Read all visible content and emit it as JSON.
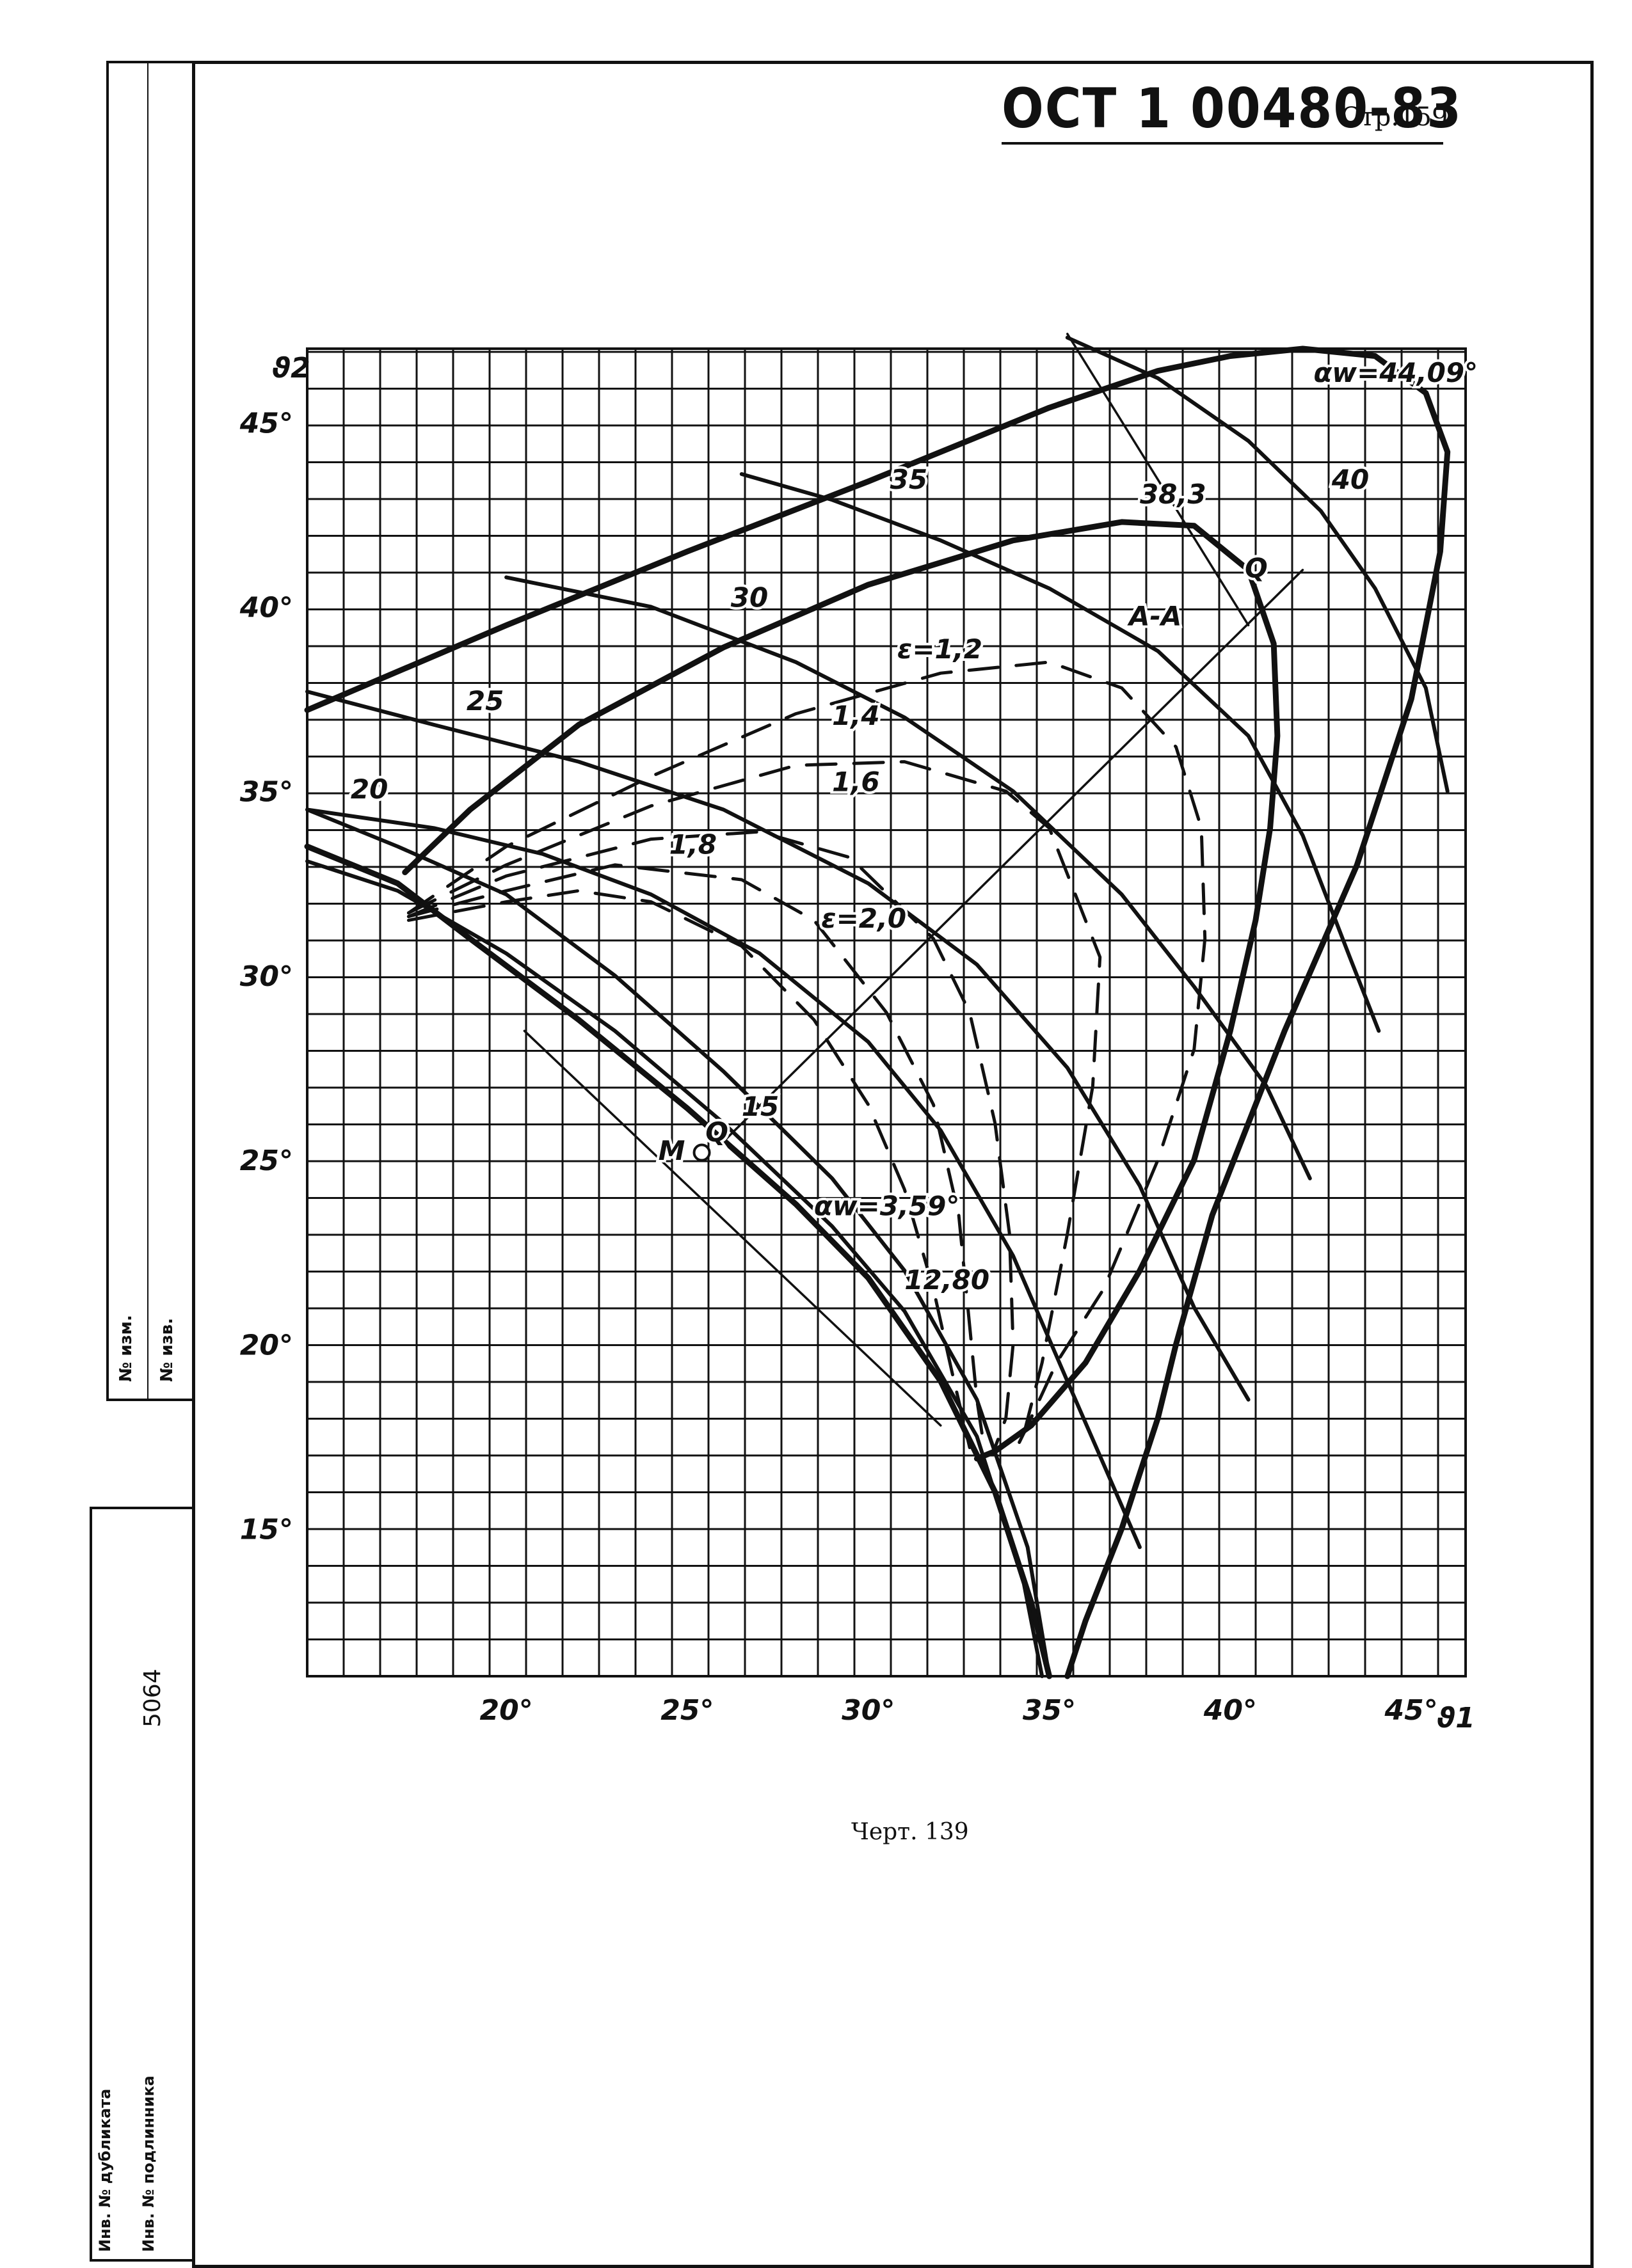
{
  "header": {
    "doc_code": "ОСТ 1 00480-83",
    "page": "Стр.159"
  },
  "caption": "Черт. 139",
  "margin": {
    "rev_label": "№ изм.",
    "notice_label": "№ изв.",
    "inv_number": "5064",
    "dup_label": "Инв. № дубликата",
    "orig_label": "Инв. № подлинника"
  },
  "chart_data": {
    "type": "line",
    "xlabel": "ϑ1",
    "ylabel": "ϑ2",
    "xlim": [
      14.5,
      46.5
    ],
    "ylim": [
      11,
      47
    ],
    "grid": true,
    "x_ticks": [
      "20°",
      "25°",
      "30°",
      "35°",
      "40°",
      "45°"
    ],
    "y_ticks": [
      "15°",
      "20°",
      "25°",
      "30°",
      "35°",
      "40°",
      "45°"
    ],
    "series": [
      {
        "name": "αw=44,09°",
        "style": "thick",
        "x": [
          14.5,
          20,
          25,
          30,
          35,
          38,
          40,
          42,
          44,
          45.4,
          46,
          45.8,
          45,
          43.5,
          41.5,
          39.5,
          38.5,
          38,
          37,
          36,
          35.5
        ],
        "y": [
          37.2,
          39.5,
          41.5,
          43.4,
          45.4,
          46.4,
          46.8,
          47.0,
          46.8,
          45.8,
          44.2,
          41.5,
          37.5,
          33,
          28.5,
          23.5,
          20,
          18,
          15,
          12.5,
          11
        ]
      },
      {
        "name": "38,3",
        "style": "thick",
        "x": [
          17.2,
          19,
          22,
          26,
          30,
          34,
          37,
          39,
          40.5,
          41.2,
          41.3,
          41.1,
          40.7,
          40,
          39,
          37.5,
          36,
          34.5,
          33.5,
          33
        ],
        "y": [
          32.8,
          34.5,
          36.8,
          38.9,
          40.6,
          41.8,
          42.3,
          42.2,
          41,
          39,
          36.5,
          34,
          31.5,
          28.5,
          25,
          22,
          19.5,
          17.8,
          17.1,
          16.9
        ]
      },
      {
        "name": "αw=3,59°",
        "style": "thick",
        "x": [
          14.5,
          17,
          19,
          22,
          25,
          28,
          30,
          32,
          33.5,
          34.5,
          35
        ],
        "y": [
          33.5,
          32.5,
          31,
          28.8,
          26.4,
          23.8,
          21.8,
          19,
          16,
          13,
          11
        ]
      },
      {
        "name": "12,80",
        "style": "medium",
        "x": [
          14.5,
          17,
          20,
          23,
          26,
          29,
          31,
          33,
          34.3,
          34.8
        ],
        "y": [
          33.1,
          32.3,
          30.6,
          28.5,
          26.0,
          23.2,
          20.9,
          17.5,
          13.5,
          11
        ]
      },
      {
        "name": "15",
        "style": "medium",
        "x": [
          14.5,
          17,
          20,
          23,
          26,
          29,
          31,
          33,
          34.4,
          35
        ],
        "y": [
          34.5,
          33.5,
          32.2,
          30.0,
          27.4,
          24.5,
          22,
          18.5,
          14.5,
          11
        ]
      },
      {
        "name": "20",
        "style": "medium",
        "x": [
          14.5,
          18,
          21,
          24,
          27,
          30,
          32,
          34,
          35.5,
          37.5
        ],
        "y": [
          34.5,
          34.0,
          33.3,
          32.2,
          30.6,
          28.2,
          25.8,
          22.4,
          19.0,
          14.5
        ]
      },
      {
        "name": "25",
        "style": "medium",
        "x": [
          14.5,
          18,
          22,
          26,
          30,
          33,
          35.5,
          37.5,
          39,
          40.5
        ],
        "y": [
          37.7,
          36.8,
          35.8,
          34.5,
          32.5,
          30.3,
          27.5,
          24.3,
          21.0,
          18.5
        ]
      },
      {
        "name": "30",
        "style": "medium",
        "x": [
          20,
          24,
          28,
          31,
          34,
          37,
          39,
          41,
          42.2
        ],
        "y": [
          40.8,
          40.0,
          38.5,
          37.0,
          35.0,
          32.2,
          29.7,
          27.0,
          24.5
        ]
      },
      {
        "name": "35",
        "style": "medium",
        "x": [
          26.5,
          29,
          32,
          35,
          38,
          40.5,
          42,
          43.3,
          44.1
        ],
        "y": [
          43.6,
          42.9,
          41.8,
          40.5,
          38.8,
          36.5,
          33.8,
          30.5,
          28.5
        ]
      },
      {
        "name": "40",
        "style": "medium",
        "x": [
          35.5,
          38,
          40.5,
          42.5,
          44,
          45.4,
          46
        ],
        "y": [
          47.3,
          46.2,
          44.5,
          42.6,
          40.5,
          37.8,
          35.0
        ]
      },
      {
        "name": "A-A",
        "style": "thin",
        "x": [
          26,
          42
        ],
        "y": [
          25.5,
          41
        ]
      },
      {
        "name": "ε=1,2",
        "style": "dashed",
        "x": [
          17.3,
          20,
          24,
          28,
          32,
          35,
          37,
          38.5,
          39.2,
          39.3,
          39,
          38,
          36.5,
          35.2,
          34.4,
          34.0
        ],
        "y": [
          31.7,
          33.5,
          35.4,
          37.1,
          38.2,
          38.5,
          37.8,
          36.2,
          34,
          31,
          28,
          25,
          21.5,
          19.5,
          17.8,
          17.0
        ]
      },
      {
        "name": "1,4",
        "style": "dashed",
        "x": [
          17.3,
          20,
          24,
          28,
          31,
          33.8,
          35,
          36.4,
          36.2,
          35.5,
          34.8,
          34.2
        ],
        "y": [
          31.7,
          33.0,
          34.6,
          35.7,
          35.8,
          35.0,
          34.0,
          30.5,
          27.0,
          23.0,
          19.5,
          17.2
        ]
      },
      {
        "name": "1,6",
        "style": "dashed",
        "x": [
          17.3,
          20,
          24,
          27,
          29.5,
          31.8,
          32.8,
          33.5,
          33.9,
          34,
          33.8,
          33.5
        ],
        "y": [
          31.6,
          32.7,
          33.7,
          33.9,
          33.2,
          31.0,
          29.0,
          26.0,
          23,
          20,
          18,
          17.2
        ]
      },
      {
        "name": "1,8",
        "style": "dashed",
        "x": [
          17.3,
          20,
          23,
          26.5,
          28.5,
          30.5,
          31.8,
          32.5,
          32.8,
          33,
          33.2
        ],
        "y": [
          31.6,
          32.3,
          33.0,
          32.6,
          31.5,
          29.0,
          26.5,
          23.5,
          20.5,
          18.5,
          17.2
        ]
      },
      {
        "name": "ε=2,0",
        "style": "dashed",
        "x": [
          17.3,
          20,
          22,
          24,
          26.5,
          28.5,
          30,
          31,
          31.8,
          32.3,
          32.8
        ],
        "y": [
          31.5,
          32.0,
          32.3,
          32.0,
          30.8,
          28.8,
          26.5,
          24.2,
          21.5,
          19.3,
          17.2
        ]
      },
      {
        "name": "Q",
        "style": "thin",
        "x": [
          20.5,
          32
        ],
        "y": [
          28.5,
          17.8
        ]
      },
      {
        "name": "Q",
        "style": "thin",
        "x": [
          35.5,
          40.5
        ],
        "y": [
          47.4,
          39.5
        ]
      }
    ],
    "points": [
      {
        "name": "M",
        "x": 25.4,
        "y": 25.2
      }
    ],
    "annotations": [
      {
        "text": "αw=44,09°",
        "x": 42.3,
        "y": 46.1
      },
      {
        "text": "38,3",
        "x": 37.5,
        "y": 42.8
      },
      {
        "text": "40",
        "x": 42.8,
        "y": 43.2
      },
      {
        "text": "35",
        "x": 30.6,
        "y": 43.2
      },
      {
        "text": "30",
        "x": 26.2,
        "y": 40.0
      },
      {
        "text": "25",
        "x": 18.9,
        "y": 37.2
      },
      {
        "text": "20",
        "x": 15.7,
        "y": 34.8
      },
      {
        "text": "15",
        "x": 26.5,
        "y": 26.2
      },
      {
        "text": "12,80",
        "x": 31.0,
        "y": 21.5
      },
      {
        "text": "αw=3,59°",
        "x": 28.5,
        "y": 23.5
      },
      {
        "text": "Q",
        "x": 40.4,
        "y": 40.8
      },
      {
        "text": "Q",
        "x": 25.5,
        "y": 25.5
      },
      {
        "text": "M",
        "x": 24.2,
        "y": 25.0
      },
      {
        "text": "A-A",
        "x": 37.2,
        "y": 39.5
      },
      {
        "text": "ε=1,2",
        "x": 30.8,
        "y": 38.6
      },
      {
        "text": "1,4",
        "x": 29.0,
        "y": 36.8
      },
      {
        "text": "1,6",
        "x": 29.0,
        "y": 35.0
      },
      {
        "text": "1,8",
        "x": 24.5,
        "y": 33.3
      },
      {
        "text": "ε=2,0",
        "x": 28.7,
        "y": 31.3
      }
    ]
  }
}
